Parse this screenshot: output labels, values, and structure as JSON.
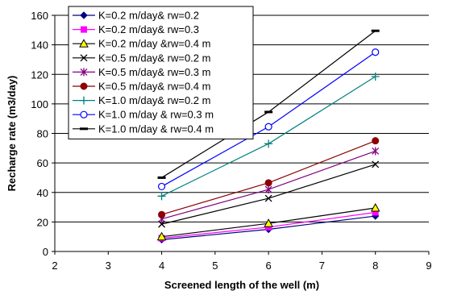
{
  "chart_data": {
    "type": "line",
    "xlabel": "Screened length of the well (m)",
    "ylabel": "Recharge rate (m3/day)",
    "xlim": [
      2,
      9
    ],
    "ylim": [
      0,
      160
    ],
    "xticks": [
      2,
      3,
      4,
      5,
      6,
      7,
      8,
      9
    ],
    "yticks": [
      0,
      20,
      40,
      60,
      80,
      100,
      120,
      140,
      160
    ],
    "x_tick_labels": [
      "2",
      "3",
      "4",
      "5",
      "6",
      "7",
      "8",
      "9"
    ],
    "y_tick_labels": [
      "0",
      "20",
      "40",
      "60",
      "80",
      "100",
      "120",
      "140",
      "160"
    ],
    "x": [
      4,
      6,
      8
    ],
    "grid": "horizontal major gridlines",
    "legend_position": "top-left (inside plot)",
    "series": [
      {
        "name": "K=0.2 m/day& rw=0.2",
        "values": [
          8,
          15,
          24
        ],
        "color": "#000080",
        "marker": "diamond"
      },
      {
        "name": "K=0.2 m/day& rw=0.3",
        "values": [
          9,
          16.5,
          26.5
        ],
        "color": "#ff00ff",
        "marker": "square"
      },
      {
        "name": "K=0.2 m/day &rw=0.4 m",
        "values": [
          10,
          19,
          29.5
        ],
        "color": "#000000",
        "marker": "triangle-yellow"
      },
      {
        "name": "K=0.5 m/day& rw=0.2 m",
        "values": [
          18.5,
          36,
          59
        ],
        "color": "#000000",
        "marker": "x"
      },
      {
        "name": "K=0.5 m/day& rw=0.3 m",
        "values": [
          22,
          42,
          68
        ],
        "color": "#800080",
        "marker": "asterisk"
      },
      {
        "name": "K=0.5 m/day& rw=0.4 m",
        "values": [
          25,
          46.5,
          75
        ],
        "color": "#8b0000",
        "marker": "circle-filled"
      },
      {
        "name": "K=1.0 m/day& rw=0.2 m",
        "values": [
          37.5,
          73,
          118.5
        ],
        "color": "#008080",
        "marker": "plus"
      },
      {
        "name": "K=1.0 m/day & rw=0.3 m",
        "values": [
          44,
          84.5,
          135
        ],
        "color": "#0000ff",
        "marker": "circle-open"
      },
      {
        "name": "K=1.0 m/day & rw=0.4 m",
        "values": [
          50,
          94.5,
          149.5
        ],
        "color": "#000000",
        "marker": "dash"
      }
    ]
  }
}
